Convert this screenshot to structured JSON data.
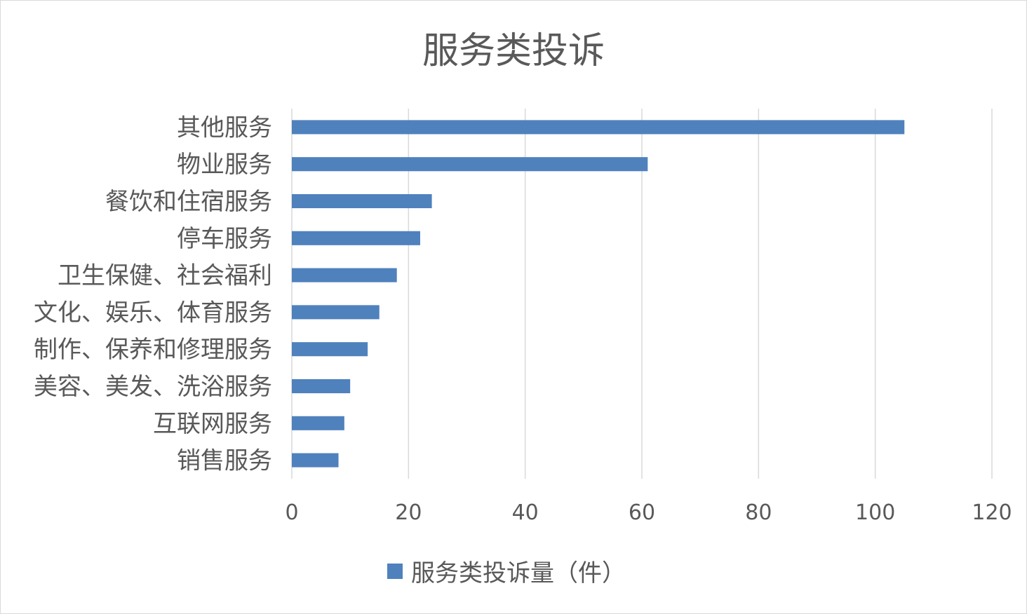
{
  "chart_data": {
    "type": "bar",
    "orientation": "horizontal",
    "title": "服务类投诉",
    "categories": [
      "其他服务",
      "物业服务",
      "餐饮和住宿服务",
      "停车服务",
      "卫生保健、社会福利",
      "文化、娱乐、体育服务",
      "制作、保养和修理服务",
      "美容、美发、洗浴服务",
      "互联网服务",
      "销售服务"
    ],
    "series": [
      {
        "name": "服务类投诉量（件）",
        "values": [
          105,
          61,
          24,
          22,
          18,
          15,
          13,
          10,
          9,
          8
        ],
        "color": "#4f81bd"
      }
    ],
    "xlim": [
      0,
      120
    ],
    "xticks": [
      0,
      20,
      40,
      60,
      80,
      100,
      120
    ],
    "grid": true,
    "legend_position": "bottom",
    "colors": {
      "gridline": "#d9d9d9",
      "axis_text": "#595959",
      "bar": "#4f81bd"
    }
  }
}
